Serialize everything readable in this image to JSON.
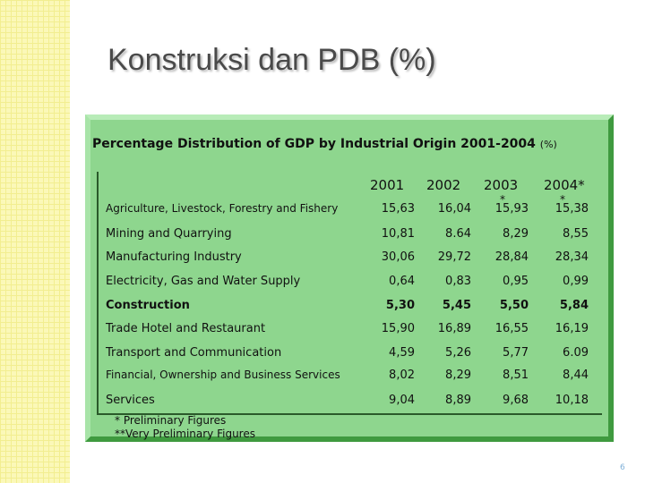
{
  "slide": {
    "title": "Konstruksi dan PDB (%)",
    "table_title": "Percentage Distribution of GDP by Industrial Origin 2001-2004",
    "table_unit": "(%)",
    "table": {
      "header": [
        {
          "label": "2001"
        },
        {
          "label": "2002"
        },
        {
          "label": "2003",
          "note": "*"
        },
        {
          "label": "2004*",
          "note": "*"
        }
      ],
      "rows": [
        {
          "label": "Agriculture, Livestock, Forestry and Fishery",
          "cells": [
            "15,63",
            "16,04",
            "15,93",
            "15,38"
          ],
          "small": true
        },
        {
          "label": "Mining and Quarrying",
          "cells": [
            "10,81",
            "8.64",
            "8,29",
            "8,55"
          ]
        },
        {
          "label": "Manufacturing Industry",
          "cells": [
            "30,06",
            "29,72",
            "28,84",
            "28,34"
          ]
        },
        {
          "label": "Electricity, Gas and Water Supply",
          "cells": [
            "0,64",
            "0,83",
            "0,95",
            "0,99"
          ]
        },
        {
          "label": "Construction",
          "cells": [
            "5,30",
            "5,45",
            "5,50",
            "5,84"
          ],
          "bold": true
        },
        {
          "label": "Trade Hotel and Restaurant",
          "cells": [
            "15,90",
            "16,89",
            "16,55",
            "16,19"
          ]
        },
        {
          "label": "Transport and Communication",
          "cells": [
            "4,59",
            "5,26",
            "5,77",
            "6.09"
          ]
        },
        {
          "label": "Financial, Ownership and Business Services",
          "cells": [
            "8,02",
            "8,29",
            "8,51",
            "8,44"
          ],
          "small": true
        },
        {
          "label": "Services",
          "cells": [
            "9,04",
            "8,89",
            "9,68",
            "10,18"
          ]
        }
      ]
    },
    "footnotes": [
      "* Preliminary Figures",
      "**Very Preliminary Figures"
    ],
    "page_number": "6"
  }
}
